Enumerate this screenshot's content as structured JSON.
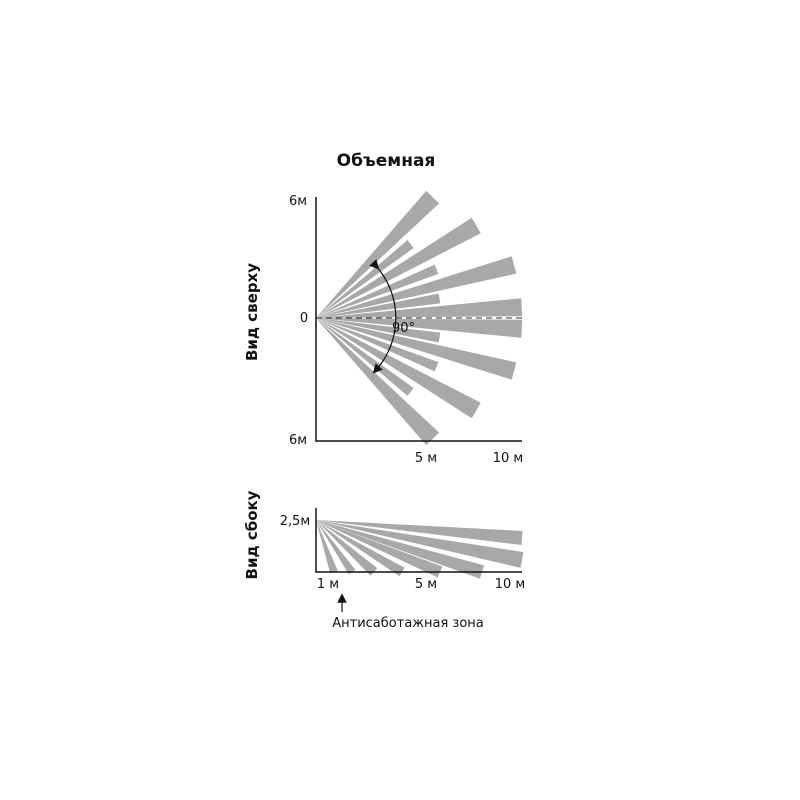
{
  "title": "Объемная",
  "top_view": {
    "label": "Вид сверху",
    "y_top": "6м",
    "y_mid": "0",
    "y_bottom": "6м",
    "x_mid": "5 м",
    "x_end": "10 м",
    "angle": "90°"
  },
  "side_view": {
    "label": "Вид сбоку",
    "y_top": "2,5м",
    "x_start": "1 м",
    "x_mid": "5 м",
    "x_end": "10 м",
    "note": "Антисаботажная зона"
  }
}
